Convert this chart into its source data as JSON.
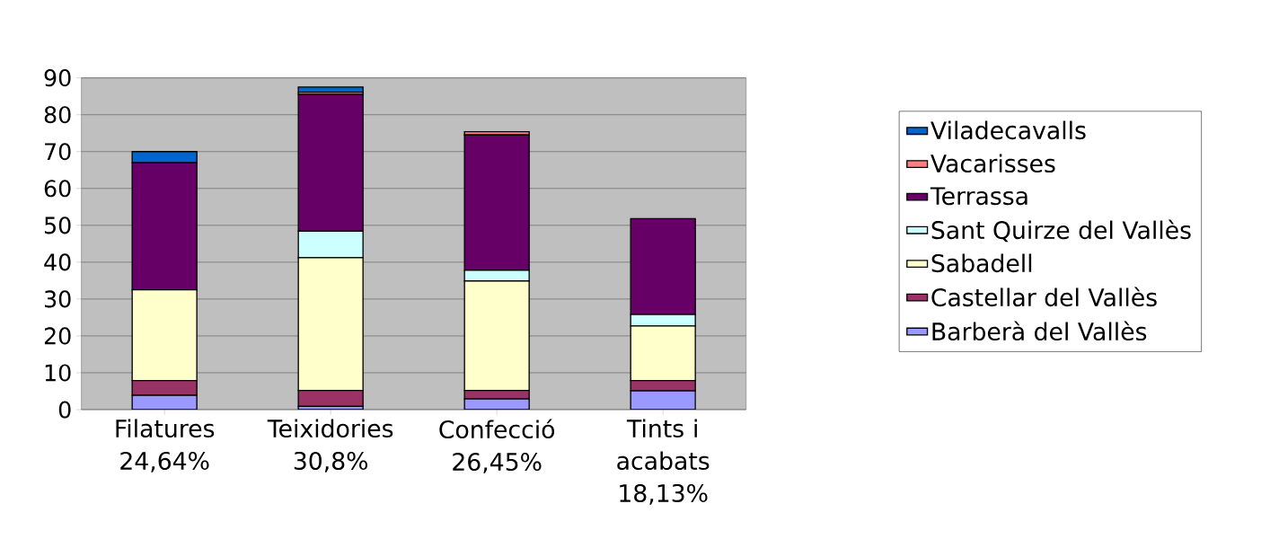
{
  "chart_data": {
    "type": "bar",
    "stacked": true,
    "categories": [
      "Filatures 24,64%",
      "Teixidories 30,8%",
      "Confecció 26,45%",
      "Tints i acabats 18,13%"
    ],
    "series": [
      {
        "name": "Barberà del Vallès",
        "color": "#9999ff",
        "values": [
          3.9,
          0.9,
          2.9,
          5.1
        ]
      },
      {
        "name": "Castellar del Vallès",
        "color": "#993366",
        "values": [
          4.0,
          4.3,
          2.3,
          2.8
        ]
      },
      {
        "name": "Sabadell",
        "color": "#ffffcc",
        "values": [
          24.6,
          36.0,
          29.7,
          14.8
        ]
      },
      {
        "name": "Sant Quirze del Vallès",
        "color": "#ccffff",
        "values": [
          0,
          7.2,
          2.9,
          3.1
        ]
      },
      {
        "name": "Terrassa",
        "color": "#660066",
        "values": [
          34.5,
          37.1,
          36.7,
          26.0
        ]
      },
      {
        "name": "Vacarisses",
        "color": "#ff8080",
        "values": [
          0,
          0.6,
          0.9,
          0
        ]
      },
      {
        "name": "Viladecavalls",
        "color": "#0066cc",
        "values": [
          3.0,
          1.4,
          0,
          0
        ]
      }
    ],
    "ylim": [
      0,
      90
    ],
    "yticks": [
      0,
      10,
      20,
      30,
      40,
      50,
      60,
      70,
      80,
      90
    ],
    "grid": "y",
    "legend": "right"
  }
}
